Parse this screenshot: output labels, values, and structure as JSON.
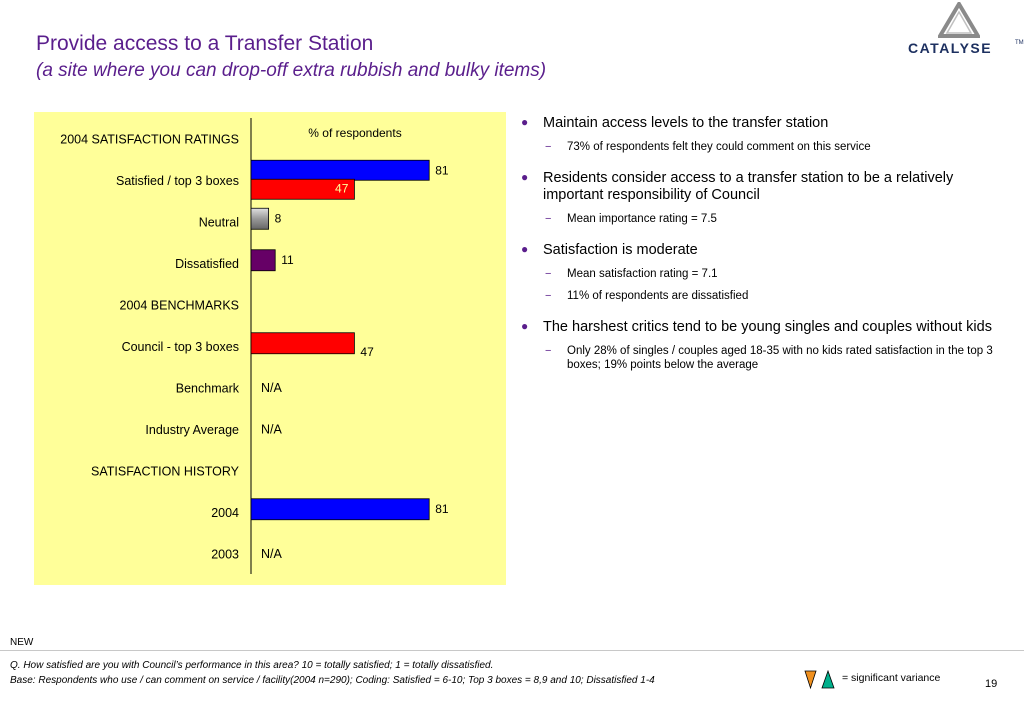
{
  "header": {
    "title": "Provide access to a Transfer Station",
    "subtitle": "(a site where you can drop-off extra rubbish and bulky items)",
    "logo_text": "CATALYSE",
    "logo_tm": "TM"
  },
  "colors": {
    "title": "#5a1e8c",
    "panel": "#ffff99",
    "satisfied_2004": "#0000ff",
    "council": "#ff0000",
    "neutral": "#999999",
    "dissatisfied": "#660066",
    "legend_down": "#f0901e",
    "legend_up": "#00b08c"
  },
  "chart_data": {
    "type": "bar",
    "orientation": "horizontal",
    "axis_title": "% of respondents",
    "xlim": [
      0,
      100
    ],
    "grid": false,
    "rows": [
      {
        "label": "2004 SATISFACTION RATINGS",
        "kind": "header",
        "bars": []
      },
      {
        "label": "Satisfied / top 3 boxes",
        "kind": "data",
        "bars": [
          {
            "value": 81,
            "label": "81",
            "color": "#0000ff",
            "role": "2004"
          },
          {
            "value": 47,
            "label": "47",
            "color": "#ff0000",
            "role": "Council"
          }
        ]
      },
      {
        "label": "Neutral",
        "kind": "data",
        "bars": [
          {
            "value": 8,
            "label": "8",
            "color": "#999999",
            "role": "2004"
          }
        ]
      },
      {
        "label": "Dissatisfied",
        "kind": "data",
        "bars": [
          {
            "value": 11,
            "label": "11",
            "color": "#660066",
            "role": "2004"
          }
        ]
      },
      {
        "label": "2004 BENCHMARKS",
        "kind": "header",
        "bars": []
      },
      {
        "label": "Council - top 3 boxes",
        "kind": "data",
        "bars": [
          {
            "value": 47,
            "label": "47",
            "color": "#ff0000",
            "role": "Council"
          }
        ]
      },
      {
        "label": "Benchmark",
        "kind": "data",
        "text": "N/A",
        "bars": []
      },
      {
        "label": "Industry Average",
        "kind": "data",
        "text": "N/A",
        "bars": []
      },
      {
        "label": "SATISFACTION HISTORY",
        "kind": "header",
        "bars": []
      },
      {
        "label": "2004",
        "kind": "data",
        "bars": [
          {
            "value": 81,
            "label": "81",
            "color": "#0000ff",
            "role": "2004"
          }
        ]
      },
      {
        "label": "2003",
        "kind": "data",
        "text": "N/A",
        "bars": []
      }
    ]
  },
  "bullets": [
    {
      "text": "Maintain access levels to the transfer station",
      "subs": [
        "73% of respondents felt they could comment on this service"
      ]
    },
    {
      "text": "Residents consider access to a transfer station to be a relatively important responsibility of Council",
      "subs": [
        "Mean importance rating = 7.5"
      ]
    },
    {
      "text": "Satisfaction is moderate",
      "subs": [
        "Mean satisfaction rating = 7.1",
        "11% of respondents are dissatisfied"
      ]
    },
    {
      "text": "The harshest critics tend to be young singles and couples without kids",
      "subs": [
        "Only 28% of singles / couples aged 18-35 with no kids rated satisfaction in the top 3 boxes; 19% points below the average"
      ]
    }
  ],
  "footer": {
    "new_label": "NEW",
    "question": "Q. How satisfied are you with Council’s performance in this area?  10 = totally satisfied; 1 = totally dissatisfied.",
    "base": "Base: Respondents who use / can comment on service / facility(2004 n=290); Coding: Satisfied = 6-10; Top 3 boxes = 8,9 and 10; Dissatisfied 1-4",
    "legend_text": "= significant variance",
    "page_number": "19"
  }
}
